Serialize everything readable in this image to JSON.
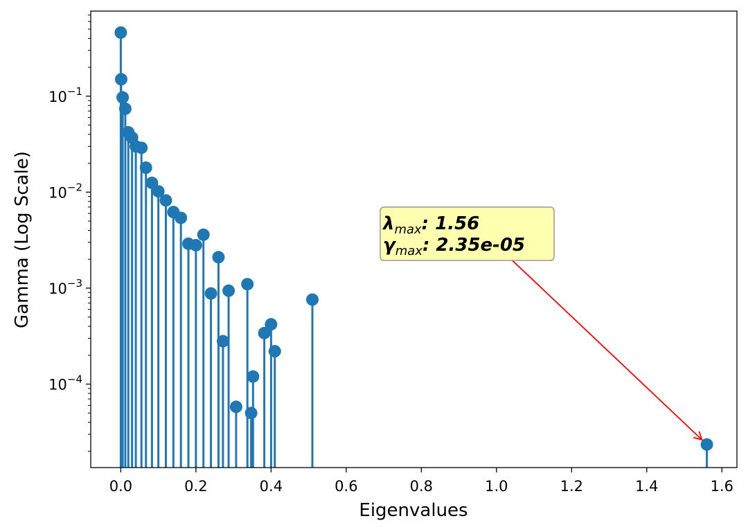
{
  "chart_data": {
    "type": "stem",
    "title": "",
    "xlabel": "Eigenvalues",
    "ylabel": "Gamma (Log Scale)",
    "xlim": [
      -0.08,
      1.64
    ],
    "ylim": [
      1.35e-05,
      0.77
    ],
    "yscale": "log",
    "x_ticks": [
      0.0,
      0.2,
      0.4,
      0.6,
      0.8,
      1.0,
      1.2,
      1.4,
      1.6
    ],
    "x_tick_labels": [
      "0.0",
      "0.2",
      "0.4",
      "0.6",
      "0.8",
      "1.0",
      "1.2",
      "1.4",
      "1.6"
    ],
    "y_ticks": [
      0.1,
      0.01,
      0.001,
      0.0001
    ],
    "y_tick_labels": [
      {
        "base": "10",
        "exp": "−1"
      },
      {
        "base": "10",
        "exp": "−2"
      },
      {
        "base": "10",
        "exp": "−3"
      },
      {
        "base": "10",
        "exp": "−4"
      }
    ],
    "series_color": "#1f77b4",
    "points": [
      {
        "x": 0.0,
        "y": 0.46
      },
      {
        "x": 0.001,
        "y": 0.15
      },
      {
        "x": 0.005,
        "y": 0.097
      },
      {
        "x": 0.012,
        "y": 0.074
      },
      {
        "x": 0.02,
        "y": 0.042
      },
      {
        "x": 0.03,
        "y": 0.037
      },
      {
        "x": 0.04,
        "y": 0.03
      },
      {
        "x": 0.055,
        "y": 0.029
      },
      {
        "x": 0.067,
        "y": 0.018
      },
      {
        "x": 0.083,
        "y": 0.0125
      },
      {
        "x": 0.1,
        "y": 0.0102
      },
      {
        "x": 0.12,
        "y": 0.0082
      },
      {
        "x": 0.14,
        "y": 0.0062
      },
      {
        "x": 0.16,
        "y": 0.0054
      },
      {
        "x": 0.18,
        "y": 0.0029
      },
      {
        "x": 0.2,
        "y": 0.0028
      },
      {
        "x": 0.22,
        "y": 0.0036
      },
      {
        "x": 0.24,
        "y": 0.00088
      },
      {
        "x": 0.26,
        "y": 0.0021
      },
      {
        "x": 0.272,
        "y": 0.00028
      },
      {
        "x": 0.287,
        "y": 0.00094
      },
      {
        "x": 0.307,
        "y": 5.8e-05
      },
      {
        "x": 0.337,
        "y": 0.0011
      },
      {
        "x": 0.347,
        "y": 5e-05
      },
      {
        "x": 0.352,
        "y": 0.00012
      },
      {
        "x": 0.382,
        "y": 0.00034
      },
      {
        "x": 0.4,
        "y": 0.00042
      },
      {
        "x": 0.41,
        "y": 0.00022
      },
      {
        "x": 0.51,
        "y": 0.00076
      },
      {
        "x": 1.56,
        "y": 2.35e-05
      }
    ],
    "annotation": {
      "lambda_symbol": "λ",
      "gamma_symbol": "γ",
      "subscript": "max",
      "lambda_value": ": 1.56",
      "gamma_value": ": 2.35e-05",
      "box_color": "#ffffb0",
      "arrow_color": "#ff0000",
      "target": {
        "x": 1.56,
        "y": 2.35e-05
      },
      "anchor": {
        "x": 1.015,
        "y": 0.00245
      }
    }
  }
}
